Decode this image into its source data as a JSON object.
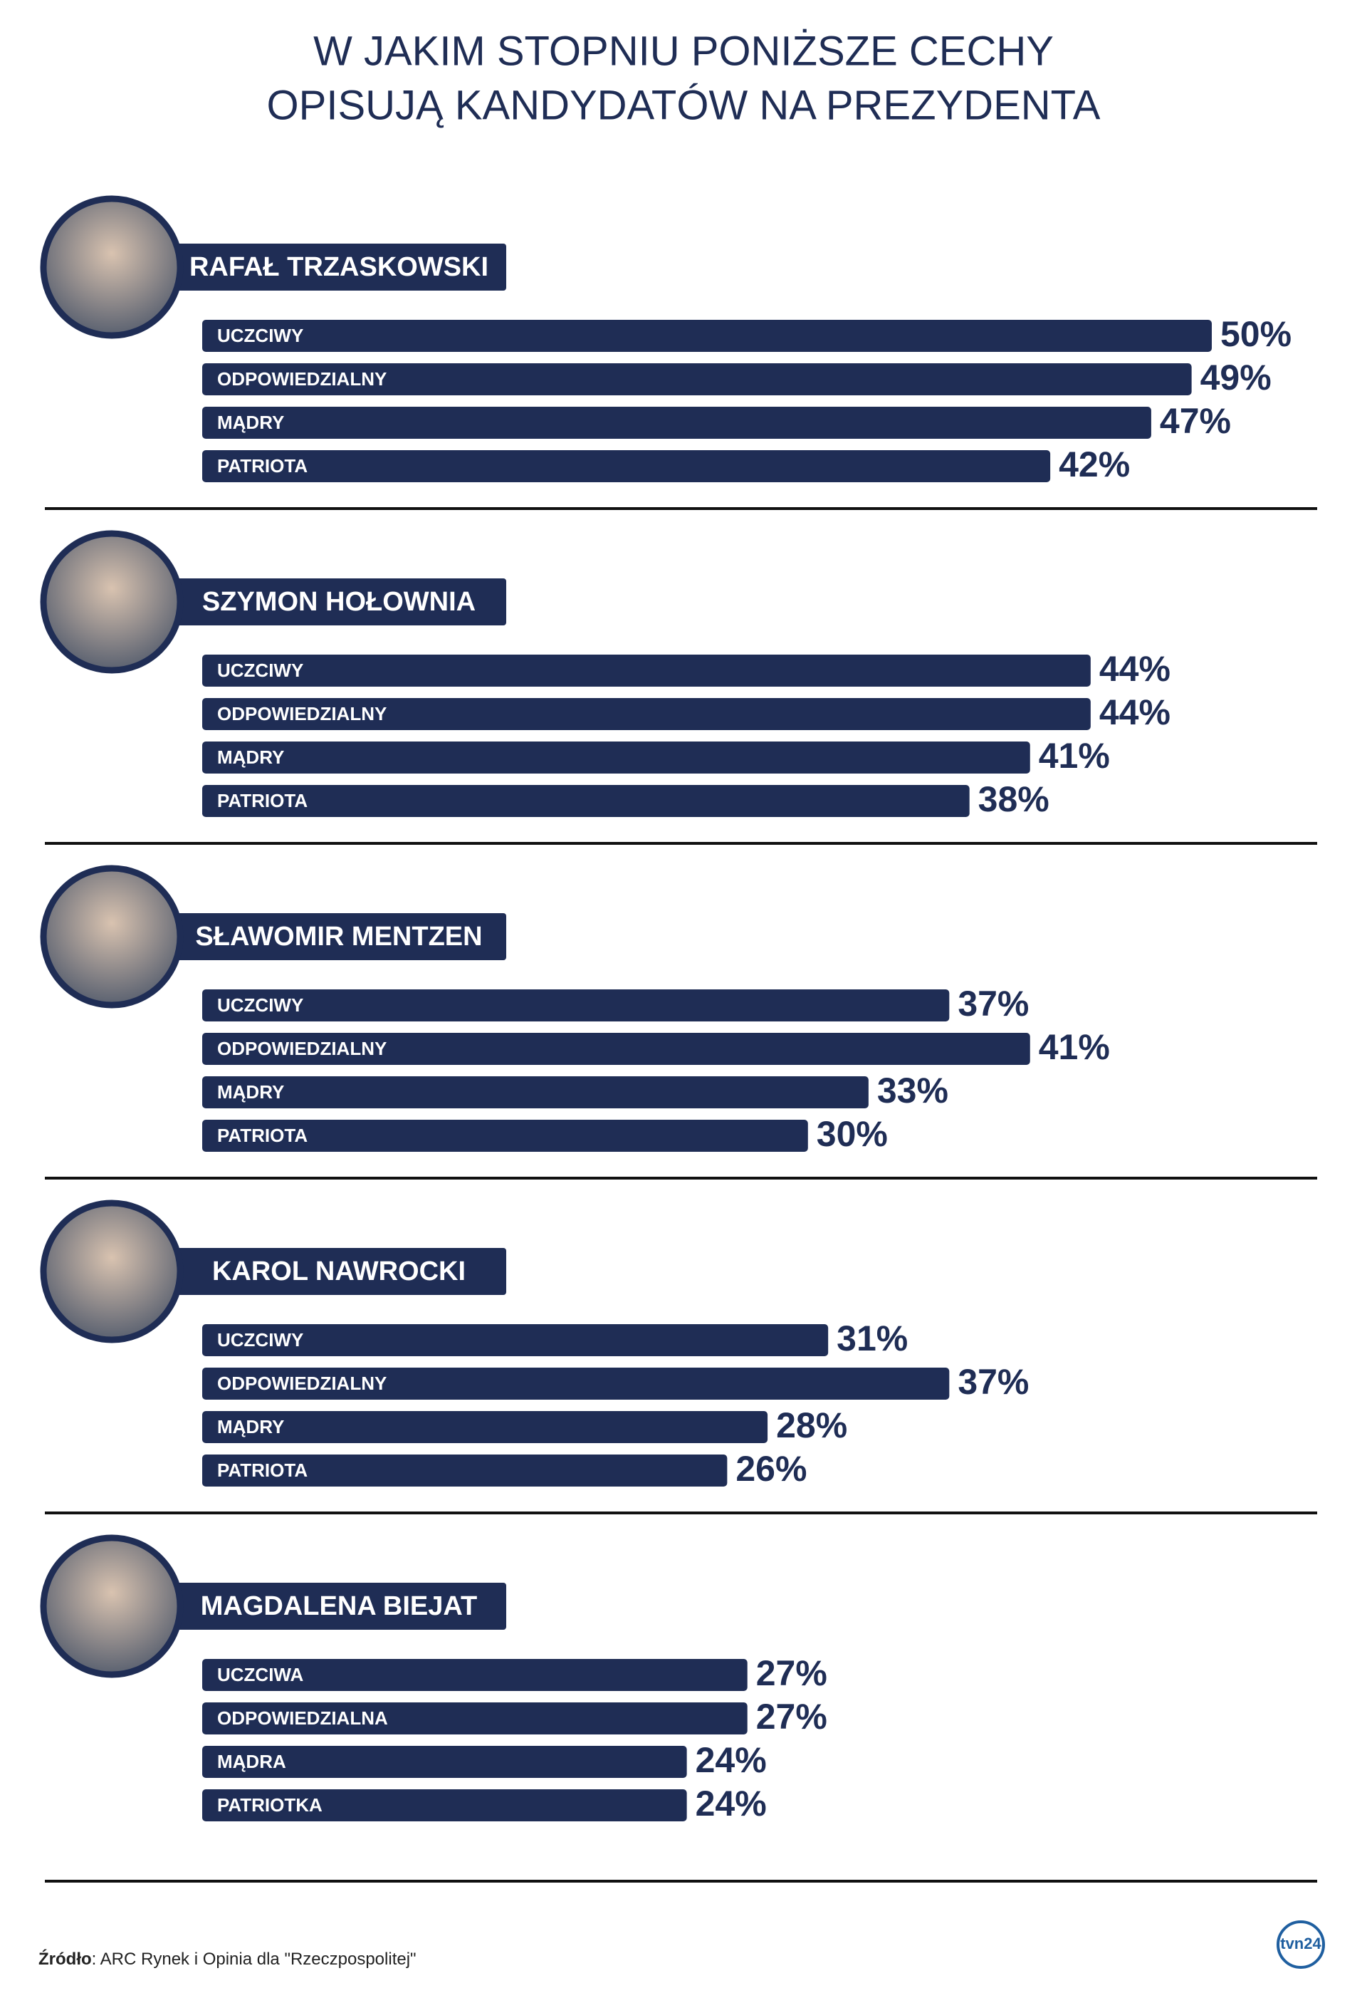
{
  "title": [
    "W JAKIM STOPNIU PONIŻSZE CECHY",
    "OPISUJĄ KANDYDATÓW NA PREZYDENTA"
  ],
  "chart_data": [
    {
      "type": "bar",
      "title": "RAFAŁ TRZASKOWSKI",
      "categories": [
        "UCZCIWY",
        "ODPOWIEDZIALNY",
        "MĄDRY",
        "PATRIOTA"
      ],
      "values": [
        50,
        49,
        47,
        42
      ],
      "value_labels": [
        "50%",
        "49%",
        "47%",
        "42%"
      ],
      "color": "#1f2d55"
    },
    {
      "type": "bar",
      "title": "SZYMON HOŁOWNIA",
      "categories": [
        "UCZCIWY",
        "ODPOWIEDZIALNY",
        "MĄDRY",
        "PATRIOTA"
      ],
      "values": [
        44,
        44,
        41,
        38
      ],
      "value_labels": [
        "44%",
        "44%",
        "41%",
        "38%"
      ],
      "color": "#1f2d55"
    },
    {
      "type": "bar",
      "title": "SŁAWOMIR MENTZEN",
      "categories": [
        "UCZCIWY",
        "ODPOWIEDZIALNY",
        "MĄDRY",
        "PATRIOTA"
      ],
      "values": [
        37,
        41,
        33,
        30
      ],
      "value_labels": [
        "37%",
        "41%",
        "33%",
        "30%"
      ],
      "color": "#1f2d55"
    },
    {
      "type": "bar",
      "title": "KAROL NAWROCKI",
      "categories": [
        "UCZCIWY",
        "ODPOWIEDZIALNY",
        "MĄDRY",
        "PATRIOTA"
      ],
      "values": [
        31,
        37,
        28,
        26
      ],
      "value_labels": [
        "31%",
        "37%",
        "28%",
        "26%"
      ],
      "color": "#1f2d55"
    },
    {
      "type": "bar",
      "title": "MAGDALENA BIEJAT",
      "categories": [
        "UCZCIWA",
        "ODPOWIEDZIALNA",
        "MĄDRA",
        "PATRIOTKA"
      ],
      "values": [
        27,
        27,
        24,
        24
      ],
      "value_labels": [
        "27%",
        "27%",
        "24%",
        "24%"
      ],
      "color": "#1f2d55"
    }
  ],
  "source": {
    "label": "Źródło",
    "text": ": ARC Rynek i Opinia dla \"Rzeczpospolitej\""
  },
  "logo": "tvn24"
}
